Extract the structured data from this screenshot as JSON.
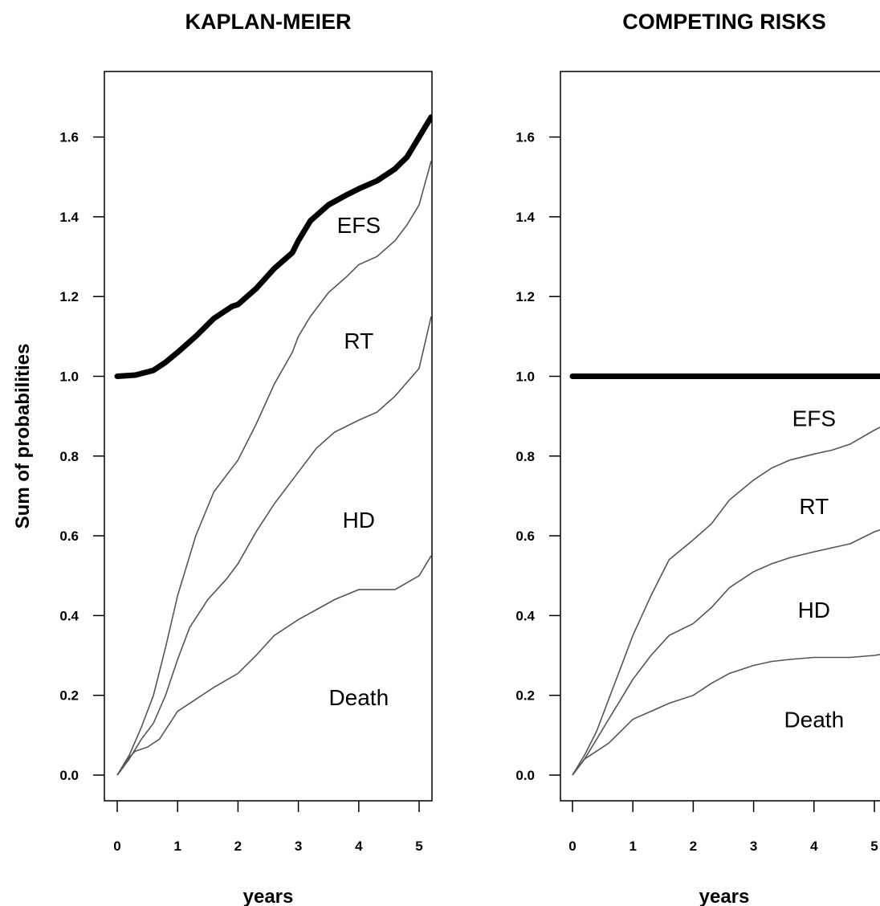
{
  "colors": {
    "thick_line": "#000000",
    "thin_line": "#555555",
    "background": "#ffffff"
  },
  "chart_data": [
    {
      "type": "line",
      "title": "KAPLAN-MEIER",
      "xlabel": "years",
      "ylabel": "Sum of probabilities",
      "xlim": [
        -0.2,
        5.2
      ],
      "ylim": [
        -0.065,
        1.77
      ],
      "x_ticks": [
        0,
        1,
        2,
        3,
        4,
        5
      ],
      "y_ticks": [
        0.0,
        0.2,
        0.4,
        0.6,
        0.8,
        1.0,
        1.2,
        1.4,
        1.6
      ],
      "x_tick_labels": [
        "0",
        "1",
        "2",
        "3",
        "4",
        "5"
      ],
      "y_tick_labels": [
        "0.0",
        "0.2",
        "0.4",
        "0.6",
        "0.8",
        "1.0",
        "1.2",
        "1.4",
        "1.6"
      ],
      "series": [
        {
          "style": "thin",
          "x": [
            0,
            0.1,
            0.2,
            0.3,
            0.5,
            0.7,
            1.0,
            1.3,
            1.6,
            2.0,
            2.3,
            2.6,
            3.0,
            3.3,
            3.6,
            4.0,
            4.3,
            4.6,
            5.0,
            5.2
          ],
          "y": [
            0,
            0.02,
            0.045,
            0.06,
            0.07,
            0.09,
            0.16,
            0.19,
            0.22,
            0.255,
            0.3,
            0.35,
            0.39,
            0.415,
            0.44,
            0.465,
            0.465,
            0.465,
            0.5,
            0.55
          ]
        },
        {
          "style": "thin",
          "x": [
            0,
            0.2,
            0.4,
            0.6,
            0.8,
            1.0,
            1.2,
            1.5,
            1.8,
            2.0,
            2.3,
            2.6,
            3.0,
            3.3,
            3.6,
            4.0,
            4.3,
            4.6,
            5.0,
            5.2
          ],
          "y": [
            0,
            0.04,
            0.09,
            0.13,
            0.2,
            0.29,
            0.37,
            0.44,
            0.49,
            0.53,
            0.61,
            0.68,
            0.76,
            0.82,
            0.86,
            0.89,
            0.91,
            0.95,
            1.02,
            1.15
          ]
        },
        {
          "style": "thin",
          "x": [
            0,
            0.2,
            0.4,
            0.6,
            0.8,
            1.0,
            1.3,
            1.6,
            1.9,
            2.0,
            2.3,
            2.6,
            2.9,
            3.0,
            3.2,
            3.5,
            3.8,
            4.0,
            4.3,
            4.6,
            4.8,
            5.0,
            5.2
          ],
          "y": [
            0,
            0.05,
            0.12,
            0.2,
            0.32,
            0.45,
            0.6,
            0.71,
            0.77,
            0.79,
            0.88,
            0.98,
            1.06,
            1.1,
            1.15,
            1.21,
            1.25,
            1.28,
            1.3,
            1.34,
            1.38,
            1.43,
            1.54
          ]
        },
        {
          "style": "thick",
          "x": [
            0,
            0.3,
            0.6,
            0.8,
            1.0,
            1.3,
            1.6,
            1.9,
            2.0,
            2.3,
            2.6,
            2.9,
            3.0,
            3.2,
            3.5,
            3.8,
            4.0,
            4.3,
            4.6,
            4.8,
            5.0,
            5.2
          ],
          "y": [
            1.0,
            1.003,
            1.015,
            1.035,
            1.06,
            1.1,
            1.145,
            1.175,
            1.18,
            1.22,
            1.27,
            1.31,
            1.34,
            1.39,
            1.43,
            1.455,
            1.47,
            1.49,
            1.52,
            1.55,
            1.6,
            1.65
          ]
        }
      ],
      "region_labels": [
        {
          "text": "EFS",
          "x": 4.0,
          "y": 1.38
        },
        {
          "text": "RT",
          "x": 4.0,
          "y": 1.09
        },
        {
          "text": "HD",
          "x": 4.0,
          "y": 0.64
        },
        {
          "text": "Death",
          "x": 4.0,
          "y": 0.195
        }
      ]
    },
    {
      "type": "line",
      "title": "COMPETING RISKS",
      "xlabel": "years",
      "ylabel": "",
      "xlim": [
        -0.2,
        5.2
      ],
      "ylim": [
        -0.065,
        1.77
      ],
      "x_ticks": [
        0,
        1,
        2,
        3,
        4,
        5
      ],
      "y_ticks": [
        0.0,
        0.2,
        0.4,
        0.6,
        0.8,
        1.0,
        1.2,
        1.4,
        1.6
      ],
      "x_tick_labels": [
        "0",
        "1",
        "2",
        "3",
        "4",
        "5"
      ],
      "y_tick_labels": [
        "0.0",
        "0.2",
        "0.4",
        "0.6",
        "0.8",
        "1.0",
        "1.2",
        "1.4",
        "1.6"
      ],
      "series": [
        {
          "style": "thin",
          "x": [
            0,
            0.1,
            0.2,
            0.4,
            0.6,
            0.8,
            1.0,
            1.3,
            1.6,
            2.0,
            2.3,
            2.6,
            3.0,
            3.3,
            3.6,
            4.0,
            4.3,
            4.6,
            5.0,
            5.2
          ],
          "y": [
            0,
            0.02,
            0.04,
            0.06,
            0.08,
            0.11,
            0.14,
            0.16,
            0.18,
            0.2,
            0.23,
            0.255,
            0.275,
            0.285,
            0.29,
            0.295,
            0.295,
            0.295,
            0.3,
            0.305
          ]
        },
        {
          "style": "thin",
          "x": [
            0,
            0.2,
            0.4,
            0.6,
            0.8,
            1.0,
            1.3,
            1.6,
            2.0,
            2.3,
            2.6,
            3.0,
            3.3,
            3.6,
            4.0,
            4.3,
            4.6,
            5.0,
            5.2
          ],
          "y": [
            0,
            0.04,
            0.09,
            0.14,
            0.19,
            0.24,
            0.3,
            0.35,
            0.38,
            0.42,
            0.47,
            0.51,
            0.53,
            0.545,
            0.56,
            0.57,
            0.58,
            0.61,
            0.62
          ]
        },
        {
          "style": "thin",
          "x": [
            0,
            0.2,
            0.4,
            0.6,
            0.8,
            1.0,
            1.3,
            1.6,
            2.0,
            2.3,
            2.6,
            3.0,
            3.3,
            3.6,
            4.0,
            4.3,
            4.6,
            5.0,
            5.2
          ],
          "y": [
            0,
            0.05,
            0.11,
            0.19,
            0.27,
            0.35,
            0.45,
            0.54,
            0.59,
            0.63,
            0.69,
            0.74,
            0.77,
            0.79,
            0.805,
            0.815,
            0.83,
            0.865,
            0.88
          ]
        },
        {
          "style": "thick",
          "x": [
            0,
            5.2
          ],
          "y": [
            1.0,
            1.0
          ]
        }
      ],
      "region_labels": [
        {
          "text": "EFS",
          "x": 4.0,
          "y": 0.895
        },
        {
          "text": "RT",
          "x": 4.0,
          "y": 0.675
        },
        {
          "text": "HD",
          "x": 4.0,
          "y": 0.415
        },
        {
          "text": "Death",
          "x": 4.0,
          "y": 0.14
        }
      ]
    }
  ]
}
